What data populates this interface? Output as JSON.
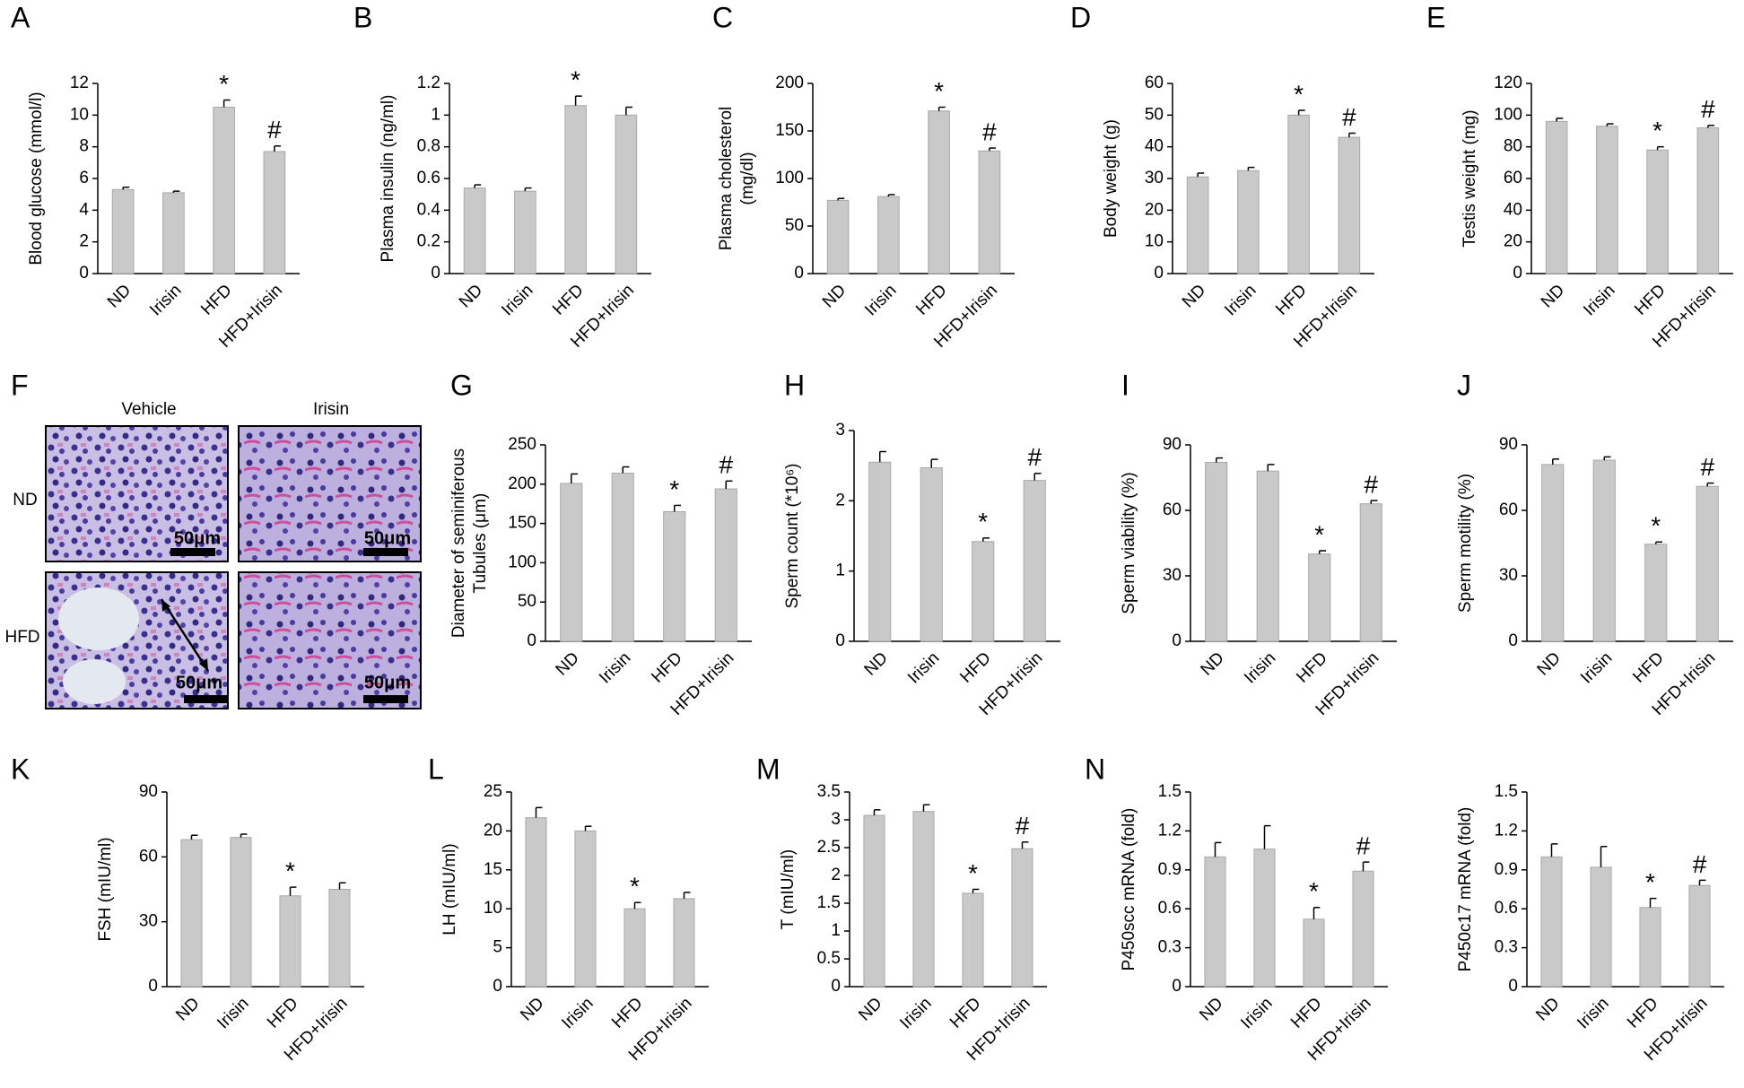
{
  "chart_data": [
    {
      "type": "bar",
      "panel": "A",
      "ylabel": "Blood glucose (mmol/l)",
      "categories": [
        "ND",
        "Irisin",
        "HFD",
        "HFD+Irisin"
      ],
      "values": [
        5.3,
        5.1,
        10.5,
        7.7
      ],
      "errors": [
        0.15,
        0.1,
        0.45,
        0.35
      ],
      "annotations": [
        null,
        null,
        "*",
        "#"
      ],
      "color": "#c9c9c9",
      "ylim": [
        0,
        12
      ],
      "yticks": [
        0,
        2,
        4,
        6,
        8,
        10,
        12
      ]
    },
    {
      "type": "bar",
      "panel": "B",
      "ylabel": "Plasma insulin (ng/ml)",
      "categories": [
        "ND",
        "Irisin",
        "HFD",
        "HFD+Irisin"
      ],
      "values": [
        0.54,
        0.52,
        1.06,
        1.0
      ],
      "errors": [
        0.02,
        0.02,
        0.06,
        0.05
      ],
      "annotations": [
        null,
        null,
        "*",
        null
      ],
      "color": "#c9c9c9",
      "ylim": [
        0,
        1.2
      ],
      "yticks": [
        0,
        0.2,
        0.4,
        0.6,
        0.8,
        1,
        1.2
      ]
    },
    {
      "type": "bar",
      "panel": "C",
      "ylabel": [
        "Plasma cholesterol",
        "(mg/dl)"
      ],
      "categories": [
        "ND",
        "Irisin",
        "HFD",
        "HFD+Irisin"
      ],
      "values": [
        77,
        81,
        171,
        129
      ],
      "errors": [
        2,
        2,
        4,
        3
      ],
      "annotations": [
        null,
        null,
        "*",
        "#"
      ],
      "color": "#c9c9c9",
      "ylim": [
        0,
        200
      ],
      "yticks": [
        0,
        50,
        100,
        150,
        200
      ]
    },
    {
      "type": "bar",
      "panel": "D",
      "ylabel": "Body weight (g)",
      "categories": [
        "ND",
        "Irisin",
        "HFD",
        "HFD+Irisin"
      ],
      "values": [
        30.5,
        32.5,
        50,
        43
      ],
      "errors": [
        1.2,
        1,
        1.5,
        1.3
      ],
      "annotations": [
        null,
        null,
        "*",
        "#"
      ],
      "color": "#c9c9c9",
      "ylim": [
        0,
        60
      ],
      "yticks": [
        0,
        10,
        20,
        30,
        40,
        50,
        60
      ]
    },
    {
      "type": "bar",
      "panel": "E",
      "ylabel": "Testis weight (mg)",
      "categories": [
        "ND",
        "Irisin",
        "HFD",
        "HFD+Irisin"
      ],
      "values": [
        96,
        93,
        78,
        92
      ],
      "errors": [
        2,
        1.5,
        2,
        1.5
      ],
      "annotations": [
        null,
        null,
        "*",
        "#"
      ],
      "color": "#c9c9c9",
      "ylim": [
        0,
        120
      ],
      "yticks": [
        0,
        20,
        40,
        60,
        80,
        100,
        120
      ]
    },
    {
      "type": "bar",
      "panel": "G",
      "ylabel": [
        "Diameter of seminiferous",
        "Tubules (μm)"
      ],
      "categories": [
        "ND",
        "Irisin",
        "HFD",
        "HFD+Irisin"
      ],
      "values": [
        201,
        214,
        165,
        194
      ],
      "errors": [
        12,
        8,
        8,
        10
      ],
      "annotations": [
        null,
        null,
        "*",
        "#"
      ],
      "color": "#c9c9c9",
      "ylim": [
        0,
        250
      ],
      "yticks": [
        0,
        50,
        100,
        150,
        200,
        250
      ]
    },
    {
      "type": "bar",
      "panel": "H",
      "ylabel": "Sperm count (*10⁶)",
      "categories": [
        "ND",
        "Irisin",
        "HFD",
        "HFD+Irisin"
      ],
      "values": [
        2.55,
        2.47,
        1.42,
        2.29
      ],
      "errors": [
        0.15,
        0.12,
        0.05,
        0.1
      ],
      "annotations": [
        null,
        null,
        "*",
        "#"
      ],
      "color": "#c9c9c9",
      "ylim": [
        0,
        3
      ],
      "yticks": [
        0,
        1,
        2,
        3
      ]
    },
    {
      "type": "bar",
      "panel": "I",
      "ylabel": "Sperm viability (%)",
      "categories": [
        "ND",
        "Irisin",
        "HFD",
        "HFD+Irisin"
      ],
      "values": [
        82,
        78,
        40,
        63
      ],
      "errors": [
        2,
        3,
        1.5,
        1.5
      ],
      "annotations": [
        null,
        null,
        "*",
        "#"
      ],
      "color": "#c9c9c9",
      "ylim": [
        0,
        90
      ],
      "yticks": [
        0,
        30,
        60,
        90
      ]
    },
    {
      "type": "bar",
      "panel": "J",
      "ylabel": "Sperm motility (%)",
      "categories": [
        "ND",
        "Irisin",
        "HFD",
        "HFD+Irisin"
      ],
      "values": [
        81,
        83,
        44.5,
        71
      ],
      "errors": [
        2.5,
        1.5,
        1,
        1.5
      ],
      "annotations": [
        null,
        null,
        "*",
        "#"
      ],
      "color": "#c9c9c9",
      "ylim": [
        0,
        90
      ],
      "yticks": [
        0,
        30,
        60,
        90
      ]
    },
    {
      "type": "bar",
      "panel": "K",
      "ylabel": "FSH (mIU/ml)",
      "categories": [
        "ND",
        "Irisin",
        "HFD",
        "HFD+Irisin"
      ],
      "values": [
        68,
        69,
        42,
        45
      ],
      "errors": [
        2,
        1.5,
        4,
        3
      ],
      "annotations": [
        null,
        null,
        "*",
        null
      ],
      "color": "#c9c9c9",
      "ylim": [
        0,
        90
      ],
      "yticks": [
        0,
        30,
        60,
        90
      ]
    },
    {
      "type": "bar",
      "panel": "L",
      "ylabel": "LH (mIU/ml)",
      "categories": [
        "ND",
        "Irisin",
        "HFD",
        "HFD+Irisin"
      ],
      "values": [
        21.7,
        20,
        10,
        11.3
      ],
      "errors": [
        1.3,
        0.6,
        0.8,
        0.8
      ],
      "annotations": [
        null,
        null,
        "*",
        null
      ],
      "color": "#c9c9c9",
      "ylim": [
        0,
        25
      ],
      "yticks": [
        0,
        5,
        10,
        15,
        20,
        25
      ]
    },
    {
      "type": "bar",
      "panel": "M",
      "ylabel": "T (mIU/ml)",
      "categories": [
        "ND",
        "Irisin",
        "HFD",
        "HFD+Irisin"
      ],
      "values": [
        3.08,
        3.15,
        1.68,
        2.48
      ],
      "errors": [
        0.1,
        0.12,
        0.07,
        0.12
      ],
      "annotations": [
        null,
        null,
        "*",
        "#"
      ],
      "color": "#c9c9c9",
      "ylim": [
        0,
        3.5
      ],
      "yticks": [
        0,
        0.5,
        1,
        1.5,
        2,
        2.5,
        3,
        3.5
      ]
    },
    {
      "type": "bar",
      "panel": "N",
      "ylabel": "P450scc mRNA (fold)",
      "categories": [
        "ND",
        "Irisin",
        "HFD",
        "HFD+Irisin"
      ],
      "values": [
        1.0,
        1.06,
        0.52,
        0.89
      ],
      "errors": [
        0.11,
        0.18,
        0.09,
        0.07
      ],
      "annotations": [
        null,
        null,
        "*",
        "#"
      ],
      "color": "#c9c9c9",
      "ylim": [
        0,
        1.5
      ],
      "yticks": [
        0,
        0.3,
        0.6,
        0.9,
        1.2,
        1.5
      ]
    },
    {
      "type": "bar",
      "ylabel": "P450c17 mRNA (fold)",
      "categories": [
        "ND",
        "Irisin",
        "HFD",
        "HFD+Irisin"
      ],
      "values": [
        1.0,
        0.92,
        0.61,
        0.78
      ],
      "errors": [
        0.1,
        0.16,
        0.07,
        0.04
      ],
      "annotations": [
        null,
        null,
        "*",
        "#"
      ],
      "color": "#c9c9c9",
      "ylim": [
        0,
        1.5
      ],
      "yticks": [
        0,
        0.3,
        0.6,
        0.9,
        1.2,
        1.5
      ]
    }
  ],
  "panel_f": {
    "label": "F",
    "columns": [
      "Vehicle",
      "Irisin"
    ],
    "rows": [
      "ND",
      "HFD"
    ],
    "scale_label": "50μm"
  }
}
